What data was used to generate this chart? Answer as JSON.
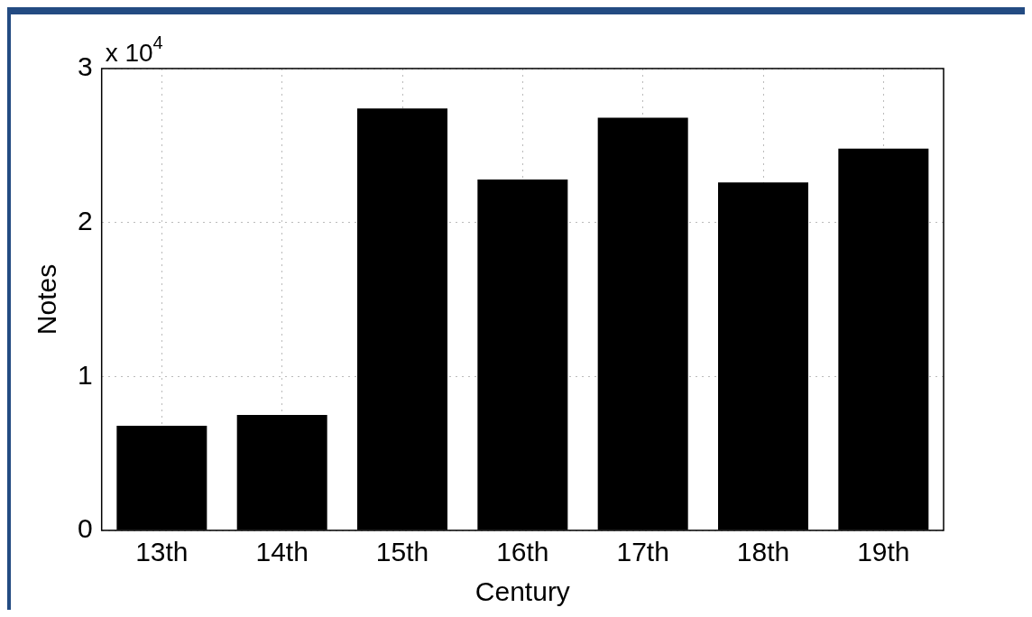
{
  "chart_data": {
    "type": "bar",
    "xlabel": "Century",
    "ylabel": "Notes",
    "categories": [
      "13th",
      "14th",
      "15th",
      "16th",
      "17th",
      "18th",
      "19th"
    ],
    "values": [
      0.68,
      0.75,
      2.74,
      2.28,
      2.68,
      2.26,
      2.48
    ],
    "color": "#000000",
    "ylim": [
      0,
      3
    ],
    "yticks": [
      0,
      1,
      2,
      3
    ],
    "grid": true,
    "annotations": [
      "x 10$^{4}$"
    ]
  }
}
